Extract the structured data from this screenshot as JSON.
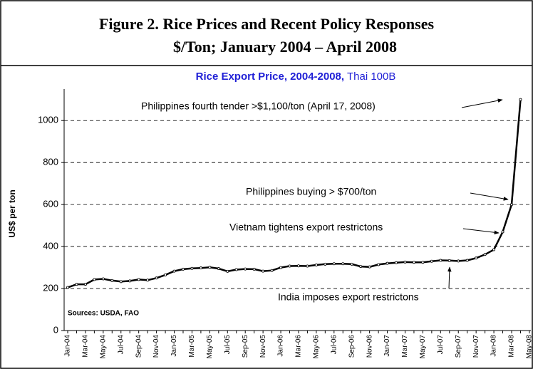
{
  "header": {
    "title": "Figure 2.  Rice Prices and Recent Policy Responses",
    "subtitle": "$/Ton;  January 2004 – April 2008"
  },
  "chart_data": {
    "type": "line",
    "title": "Rice Export Price, 2004-2008,",
    "subtitle": "Thai 100B",
    "y_label": "US$ per ton",
    "categories": [
      "Jan-04",
      null,
      "Mar-04",
      null,
      "May-04",
      null,
      "Jul-04",
      null,
      "Sep-04",
      null,
      "Nov-04",
      null,
      "Jan-05",
      null,
      "Mar-05",
      null,
      "May-05",
      null,
      "Jul-05",
      null,
      "Sep-05",
      null,
      "Nov-05",
      null,
      "Jan-06",
      null,
      "Mar-06",
      null,
      "May-06",
      null,
      "Jul-06",
      null,
      "Sep-06",
      null,
      "Nov-06",
      null,
      "Jan-07",
      null,
      "Mar-07",
      null,
      "May-07",
      null,
      "Jul-07",
      null,
      "Sep-07",
      null,
      "Nov-07",
      null,
      "Jan-08",
      null,
      "Mar-08",
      null,
      "May-08"
    ],
    "values": [
      205,
      220,
      220,
      243,
      246,
      238,
      233,
      236,
      243,
      240,
      250,
      265,
      283,
      292,
      296,
      298,
      301,
      295,
      282,
      290,
      293,
      292,
      283,
      286,
      300,
      307,
      308,
      307,
      312,
      316,
      318,
      318,
      316,
      305,
      303,
      314,
      320,
      323,
      326,
      325,
      325,
      330,
      334,
      333,
      331,
      334,
      345,
      362,
      385,
      470,
      600,
      1100,
      null
    ],
    "color": "#000000",
    "ylim": [
      0,
      1150
    ],
    "yticks": [
      0,
      200,
      400,
      600,
      800,
      1000
    ],
    "grid": true,
    "annotations": [
      "Philippines fourth tender >$1,100/ton (April 17, 2008)",
      "Philippines buying > $700/ton",
      "Vietnam tightens export restrictons",
      "India imposes export restrictons"
    ],
    "source": "Sources: USDA, FAO"
  }
}
